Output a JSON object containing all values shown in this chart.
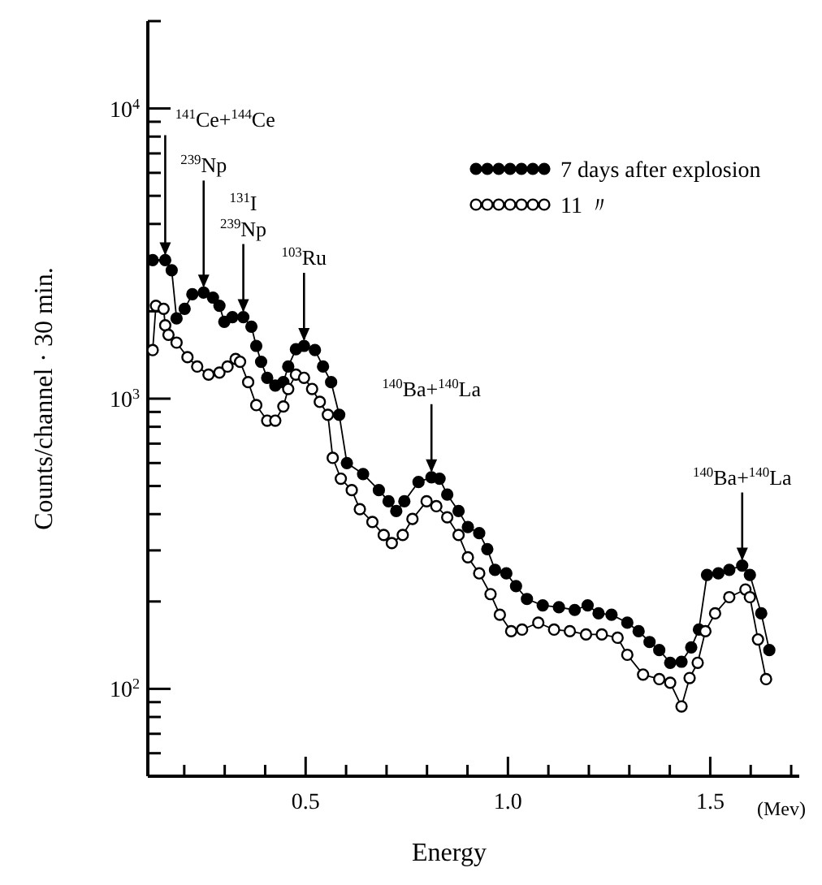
{
  "chart_data": {
    "type": "line",
    "xlabel": "Energy",
    "ylabel": "Counts/channel · 30 min.",
    "log": "y",
    "marker": "circle",
    "legend": "top right",
    "grid": false,
    "xlim": [
      0.11,
      1.72
    ],
    "xticks": [
      {
        "value": 0.2,
        "label": null
      },
      {
        "value": 0.3,
        "label": null
      },
      {
        "value": 0.4,
        "label": null
      },
      0.5,
      {
        "value": 0.6,
        "label": null
      },
      {
        "value": 0.7,
        "label": null
      },
      {
        "value": 0.8,
        "label": null
      },
      {
        "value": 0.9,
        "label": null
      },
      {
        "value": 1.0,
        "label": "1.0"
      },
      {
        "value": 1.1,
        "label": null
      },
      {
        "value": 1.2,
        "label": null
      },
      {
        "value": 1.3,
        "label": null
      },
      {
        "value": 1.4,
        "label": null
      },
      1.5,
      {
        "value": 1.6,
        "label": null
      },
      {
        "value": 1.7,
        "label": null
      }
    ],
    "ylim": [
      50,
      20000
    ],
    "yticks": [
      {
        "value": 60,
        "label": null
      },
      {
        "value": 70,
        "label": null
      },
      {
        "value": 80,
        "label": null
      },
      {
        "value": 90,
        "label": null
      },
      {
        "value": 100,
        "label": "10$^{2}$"
      },
      {
        "value": 200,
        "label": null
      },
      {
        "value": 300,
        "label": null
      },
      {
        "value": 400,
        "label": null
      },
      {
        "value": 500,
        "label": null
      },
      {
        "value": 600,
        "label": null
      },
      {
        "value": 700,
        "label": null
      },
      {
        "value": 800,
        "label": null
      },
      {
        "value": 900,
        "label": null
      },
      {
        "value": 1000,
        "label": "10$^{3}$"
      },
      {
        "value": 2000,
        "label": null
      },
      {
        "value": 3000,
        "label": null
      },
      {
        "value": 4000,
        "label": null
      },
      {
        "value": 5000,
        "label": null
      },
      {
        "value": 6000,
        "label": null
      },
      {
        "value": 7000,
        "label": null
      },
      {
        "value": 8000,
        "label": null
      },
      {
        "value": 9000,
        "label": null
      },
      {
        "value": 10000,
        "label": "10$^{4}$"
      },
      {
        "value": 20000,
        "label": null
      }
    ],
    "series": [
      {
        "name": "7 days after explosion",
        "color": "#000000",
        "x": [
          0.122,
          0.153,
          0.169,
          0.181,
          0.201,
          0.22,
          0.248,
          0.271,
          0.287,
          0.299,
          0.319,
          0.346,
          0.366,
          0.378,
          0.39,
          0.405,
          0.425,
          0.445,
          0.457,
          0.476,
          0.496,
          0.523,
          0.543,
          0.563,
          0.583,
          0.602,
          0.642,
          0.681,
          0.705,
          0.724,
          0.744,
          0.779,
          0.811,
          0.831,
          0.85,
          0.878,
          0.901,
          0.929,
          0.949,
          0.968,
          0.996,
          1.02,
          1.047,
          1.086,
          1.126,
          1.165,
          1.197,
          1.224,
          1.256,
          1.295,
          1.323,
          1.35,
          1.374,
          1.401,
          1.429,
          1.453,
          1.472,
          1.492,
          1.52,
          1.547,
          1.579,
          1.598,
          1.626,
          1.646
        ],
        "values": [
          3000,
          3000,
          2770,
          1890,
          2040,
          2290,
          2320,
          2230,
          2090,
          1840,
          1910,
          1910,
          1770,
          1520,
          1340,
          1180,
          1110,
          1140,
          1290,
          1480,
          1520,
          1470,
          1290,
          1140,
          880,
          600,
          550,
          484,
          443,
          410,
          443,
          516,
          536,
          530,
          467,
          410,
          361,
          344,
          303,
          257,
          250,
          226,
          204,
          194,
          191,
          187,
          194,
          182,
          180,
          169,
          158,
          145,
          136,
          123,
          124,
          139,
          160,
          247,
          250,
          257,
          266,
          247,
          182,
          136
        ]
      },
      {
        "name": "11 〃",
        "color": "#ffffff",
        "x": [
          0.122,
          0.13,
          0.149,
          0.153,
          0.161,
          0.181,
          0.208,
          0.232,
          0.26,
          0.287,
          0.307,
          0.327,
          0.338,
          0.358,
          0.378,
          0.405,
          0.425,
          0.445,
          0.457,
          0.476,
          0.496,
          0.516,
          0.535,
          0.555,
          0.567,
          0.587,
          0.614,
          0.634,
          0.665,
          0.693,
          0.713,
          0.74,
          0.764,
          0.799,
          0.823,
          0.85,
          0.878,
          0.901,
          0.929,
          0.957,
          0.98,
          1.008,
          1.035,
          1.075,
          1.114,
          1.153,
          1.193,
          1.232,
          1.271,
          1.295,
          1.334,
          1.374,
          1.401,
          1.429,
          1.449,
          1.469,
          1.488,
          1.512,
          1.547,
          1.587,
          1.598,
          1.618,
          1.638
        ],
        "values": [
          1470,
          2090,
          2040,
          1790,
          1660,
          1560,
          1390,
          1290,
          1210,
          1230,
          1290,
          1370,
          1340,
          1140,
          950,
          840,
          840,
          940,
          1080,
          1210,
          1180,
          1080,
          975,
          880,
          625,
          530,
          484,
          416,
          376,
          339,
          318,
          339,
          385,
          443,
          426,
          390,
          339,
          284,
          250,
          212,
          180,
          158,
          160,
          169,
          160,
          158,
          154,
          154,
          150,
          131,
          112,
          108,
          105,
          87,
          109,
          123,
          158,
          182,
          207,
          220,
          207,
          148,
          108
        ]
      }
    ],
    "annotations": [
      {
        "text": "$^{141}$Ce+$^{144}$Ce",
        "x": 0.153,
        "y": 3000
      },
      {
        "text": "$^{239}$Np",
        "x": 0.248,
        "y": 2320
      },
      {
        "text": "$^{131}$I\n$^{239}$Np",
        "x": 0.346,
        "y": 1910
      },
      {
        "text": "$^{103}$Ru",
        "x": 0.496,
        "y": 1520
      },
      {
        "text": "$^{140}$Ba+$^{140}$La",
        "x": 0.811,
        "y": 536
      },
      {
        "text": "$^{140}$Ba+$^{140}$La",
        "x": 1.579,
        "y": 266
      },
      "(Mev)"
    ]
  }
}
